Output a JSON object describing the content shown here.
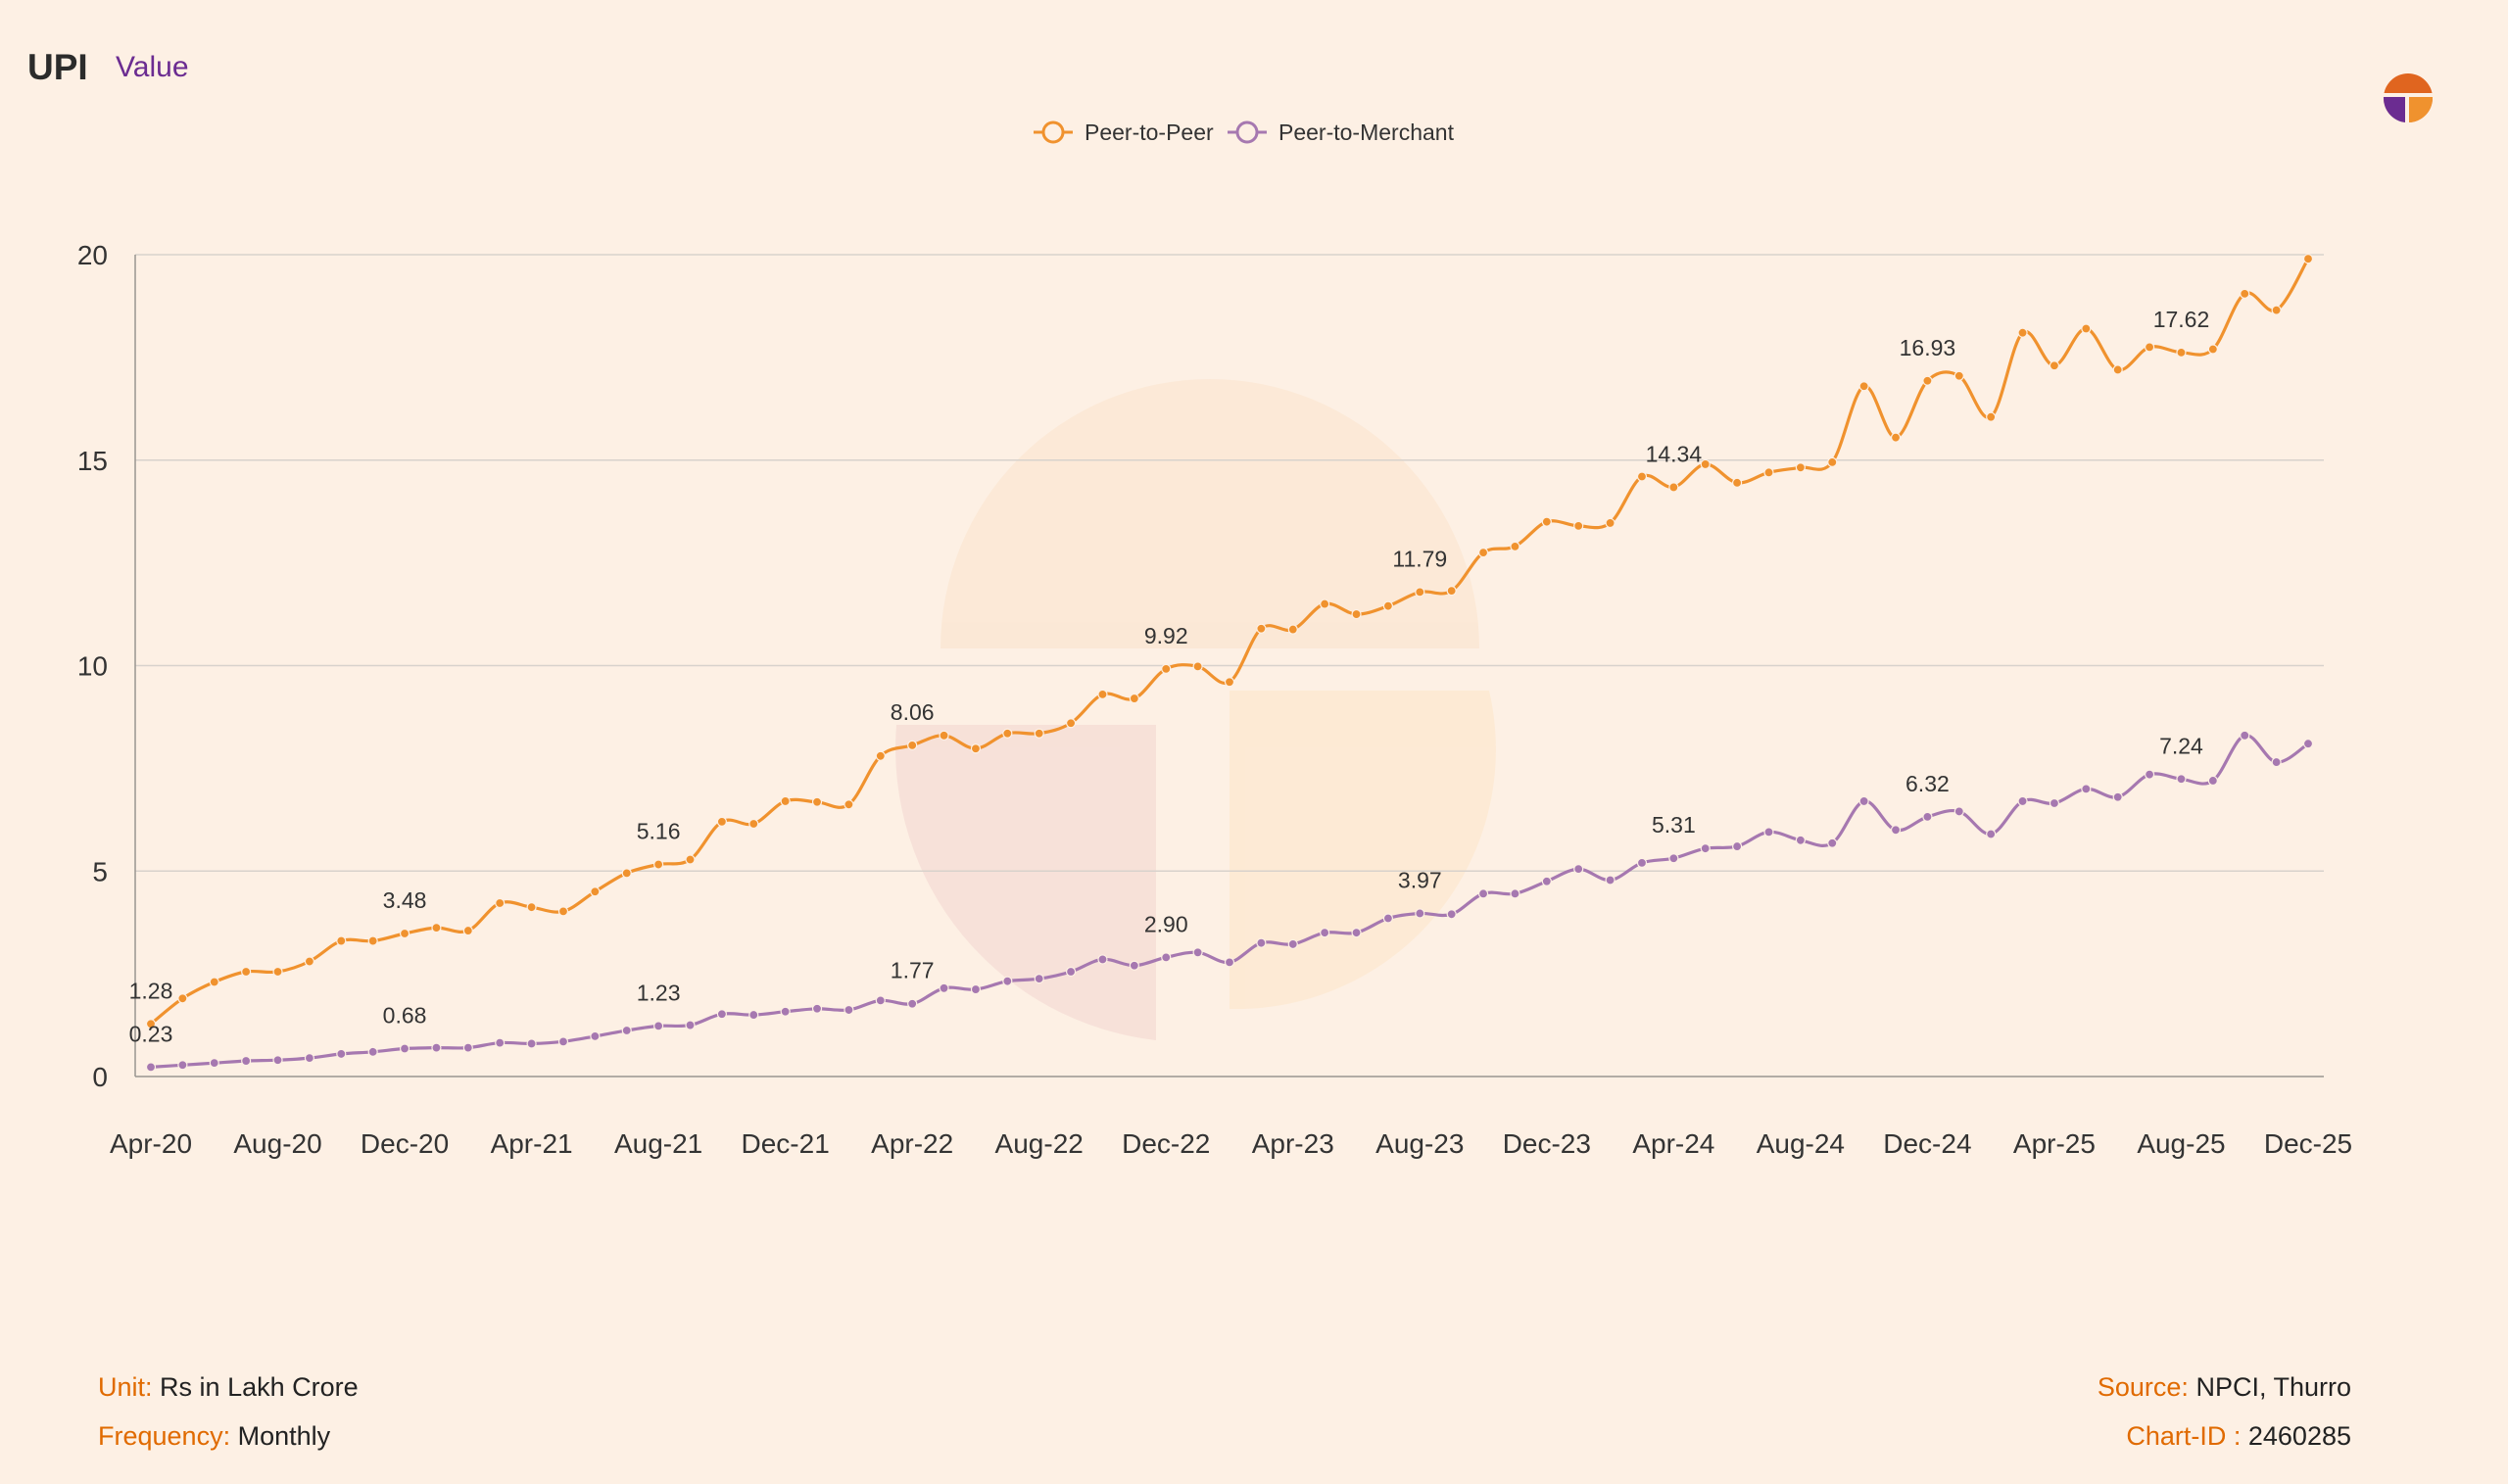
{
  "header": {
    "title": "UPI",
    "subtitle": "Value"
  },
  "logo": {
    "icon": "thurro-logo-icon"
  },
  "footer": {
    "unit_key": "Unit:",
    "unit_value": "Rs in Lakh Crore",
    "frequency_key": "Frequency:",
    "frequency_value": "Monthly",
    "source_key": "Source:",
    "source_value": "NPCI, Thurro",
    "chart_id_key": "Chart-ID :",
    "chart_id_value": "2460285"
  },
  "colors": {
    "background": "#fdf0e4",
    "p2p": "#f0922e",
    "p2m": "#a678b0",
    "grid": "#d8d2cc",
    "accent_text": "#e06a00",
    "subtitle": "#6b2c91"
  },
  "chart_data": {
    "type": "line",
    "title": "UPI",
    "subtitle": "Value",
    "ylabel": "Rs in Lakh Crore",
    "ylim": [
      0,
      20
    ],
    "yticks": [
      0,
      5,
      10,
      15,
      20
    ],
    "xtick_labels": [
      "Apr-20",
      "Aug-20",
      "Dec-20",
      "Apr-21",
      "Aug-21",
      "Dec-21",
      "Apr-22",
      "Aug-22",
      "Dec-22",
      "Apr-23",
      "Aug-23",
      "Dec-23",
      "Apr-24",
      "Aug-24",
      "Dec-24",
      "Apr-25",
      "Aug-25",
      "Dec-25"
    ],
    "legend_position": "top-center",
    "grid": true,
    "series": [
      {
        "name": "Peer-to-Peer",
        "values": [
          1.28,
          1.9,
          2.3,
          2.55,
          2.55,
          2.8,
          3.3,
          3.3,
          3.48,
          3.62,
          3.55,
          4.22,
          4.12,
          4.02,
          4.5,
          4.95,
          5.16,
          5.28,
          6.2,
          6.15,
          6.7,
          6.68,
          6.62,
          7.8,
          8.06,
          8.3,
          7.98,
          8.35,
          8.35,
          8.6,
          9.3,
          9.2,
          9.92,
          9.98,
          9.6,
          10.9,
          10.88,
          11.5,
          11.25,
          11.45,
          11.79,
          11.82,
          12.75,
          12.9,
          13.5,
          13.4,
          13.47,
          14.6,
          14.34,
          14.9,
          14.45,
          14.7,
          14.82,
          14.95,
          16.8,
          15.55,
          16.93,
          17.05,
          16.05,
          18.1,
          17.3,
          18.2,
          17.2,
          17.75,
          17.62,
          17.7,
          19.05,
          18.65,
          19.9
        ],
        "labels": [
          {
            "index": 0,
            "text": "1.28"
          },
          {
            "index": 8,
            "text": "3.48"
          },
          {
            "index": 16,
            "text": "5.16"
          },
          {
            "index": 24,
            "text": "8.06"
          },
          {
            "index": 32,
            "text": "9.92"
          },
          {
            "index": 40,
            "text": "11.79"
          },
          {
            "index": 48,
            "text": "14.34"
          },
          {
            "index": 56,
            "text": "16.93"
          },
          {
            "index": 64,
            "text": "17.62"
          }
        ]
      },
      {
        "name": "Peer-to-Merchant",
        "values": [
          0.23,
          0.28,
          0.33,
          0.38,
          0.4,
          0.45,
          0.55,
          0.6,
          0.68,
          0.7,
          0.7,
          0.82,
          0.8,
          0.85,
          0.98,
          1.12,
          1.23,
          1.25,
          1.52,
          1.5,
          1.58,
          1.65,
          1.62,
          1.85,
          1.77,
          2.15,
          2.12,
          2.32,
          2.38,
          2.55,
          2.85,
          2.7,
          2.9,
          3.02,
          2.78,
          3.25,
          3.22,
          3.5,
          3.5,
          3.85,
          3.97,
          3.95,
          4.45,
          4.45,
          4.75,
          5.05,
          4.78,
          5.2,
          5.31,
          5.55,
          5.6,
          5.95,
          5.75,
          5.68,
          6.7,
          6.0,
          6.32,
          6.45,
          5.9,
          6.7,
          6.65,
          7.0,
          6.8,
          7.35,
          7.24,
          7.2,
          8.3,
          7.65,
          8.1
        ],
        "labels": [
          {
            "index": 0,
            "text": "0.23"
          },
          {
            "index": 8,
            "text": "0.68"
          },
          {
            "index": 16,
            "text": "1.23"
          },
          {
            "index": 24,
            "text": "1.77"
          },
          {
            "index": 32,
            "text": "2.90"
          },
          {
            "index": 40,
            "text": "3.97"
          },
          {
            "index": 48,
            "text": "5.31"
          },
          {
            "index": 56,
            "text": "6.32"
          },
          {
            "index": 64,
            "text": "7.24"
          }
        ]
      }
    ]
  }
}
